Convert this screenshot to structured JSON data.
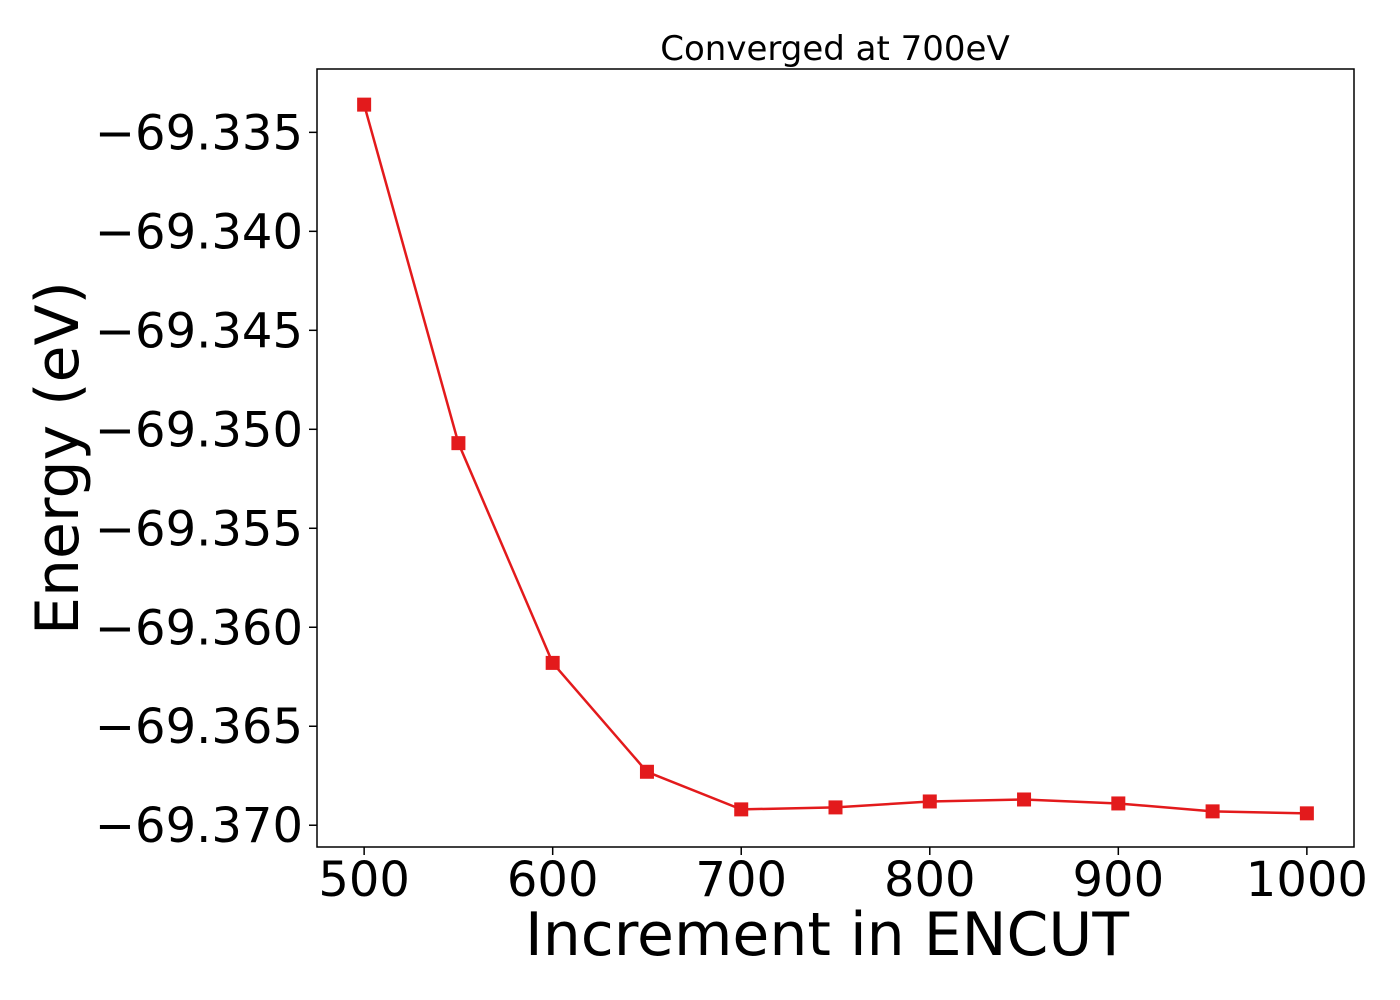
{
  "chart_data": {
    "type": "line",
    "title": "Converged at 700eV",
    "xlabel": "Increment in ENCUT",
    "ylabel": "Energy (eV)",
    "xlim": [
      475,
      1025
    ],
    "ylim": [
      -69.3711,
      -69.3318
    ],
    "xticks": [
      500,
      600,
      700,
      800,
      900,
      1000
    ],
    "xtick_labels": [
      "500",
      "600",
      "700",
      "800",
      "900",
      "1000"
    ],
    "yticks": [
      -69.335,
      -69.34,
      -69.345,
      -69.35,
      -69.355,
      -69.36,
      -69.365,
      -69.37
    ],
    "ytick_labels": [
      "−69.335",
      "−69.340",
      "−69.345",
      "−69.350",
      "−69.355",
      "−69.360",
      "−69.365",
      "−69.370"
    ],
    "grid": false,
    "series": [
      {
        "color": "#e31a1c",
        "marker": "square",
        "x": [
          500,
          550,
          600,
          650,
          700,
          750,
          800,
          850,
          900,
          950,
          1000
        ],
        "y": [
          -69.3336,
          -69.3507,
          -69.3618,
          -69.3673,
          -69.3692,
          -69.3691,
          -69.3688,
          -69.3687,
          -69.3689,
          -69.3693,
          -69.3694
        ]
      }
    ]
  }
}
